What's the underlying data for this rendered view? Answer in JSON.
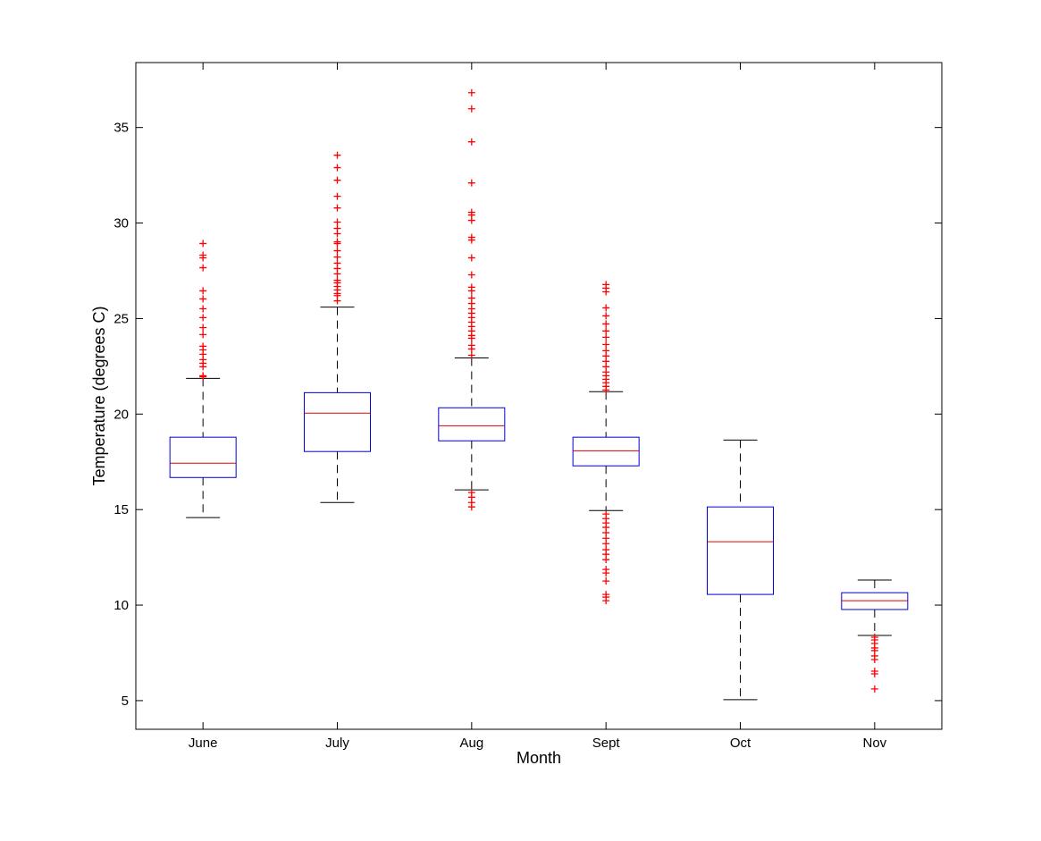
{
  "chart_data": {
    "type": "box",
    "title": "",
    "xlabel": "Month",
    "ylabel": "Temperature (degrees C)",
    "ylim": [
      3.5,
      38.4
    ],
    "xlim": [
      0.5,
      6.5
    ],
    "yticks": [
      5,
      10,
      15,
      20,
      25,
      30,
      35
    ],
    "grid": false,
    "colors": {
      "box": "#0000cc",
      "median": "#dd0000",
      "whisker": "#000000",
      "outlier": "#ff0000"
    },
    "categories": [
      "June",
      "July",
      "Aug",
      "Sept",
      "Oct",
      "Nov"
    ],
    "boxes": [
      {
        "name": "June",
        "whisker_low": 14.58,
        "q1": 16.68,
        "median": 17.43,
        "q3": 18.79,
        "whisker_high": 21.87,
        "outliers": [
          28.93,
          28.32,
          28.18,
          27.66,
          26.45,
          26.03,
          25.51,
          25.05,
          24.53,
          24.16,
          23.55,
          23.36,
          23.13,
          22.85,
          22.66,
          22.48,
          22.01,
          21.95
        ]
      },
      {
        "name": "July",
        "whisker_low": 15.37,
        "q1": 18.04,
        "median": 20.05,
        "q3": 21.12,
        "whisker_high": 25.6,
        "outliers": [
          33.55,
          32.9,
          32.24,
          31.4,
          30.79,
          30.05,
          29.72,
          29.44,
          29.02,
          28.93,
          28.55,
          28.22,
          27.9,
          27.62,
          27.34,
          27.0,
          26.87,
          26.68,
          26.5,
          26.31,
          26.2,
          25.93
        ]
      },
      {
        "name": "Aug",
        "whisker_low": 16.03,
        "q1": 18.6,
        "median": 19.39,
        "q3": 20.33,
        "whisker_high": 22.94,
        "outliers": [
          36.82,
          35.98,
          34.25,
          32.1,
          30.56,
          30.42,
          30.14,
          29.25,
          29.11,
          28.18,
          27.29,
          26.64,
          26.45,
          26.07,
          25.79,
          25.51,
          25.28,
          25.05,
          24.81,
          24.58,
          24.35,
          24.11,
          23.97,
          23.6,
          23.41,
          23.08,
          15.89,
          15.65,
          15.37,
          15.14
        ]
      },
      {
        "name": "Sept",
        "whisker_low": 14.95,
        "q1": 17.29,
        "median": 18.08,
        "q3": 18.79,
        "whisker_high": 21.17,
        "outliers": [
          26.78,
          26.59,
          26.4,
          25.56,
          25.14,
          24.72,
          24.35,
          24.02,
          23.64,
          23.32,
          23.04,
          22.76,
          22.48,
          22.2,
          22.01,
          21.82,
          21.64,
          21.45,
          21.26,
          14.77,
          14.53,
          14.3,
          14.07,
          13.79,
          13.5,
          13.22,
          12.9,
          12.66,
          12.38,
          11.87,
          11.68,
          11.26,
          10.56,
          10.42,
          10.23
        ]
      },
      {
        "name": "Oct",
        "whisker_low": 5.05,
        "q1": 10.56,
        "median": 13.32,
        "q3": 15.14,
        "whisker_high": 18.64,
        "outliers": []
      },
      {
        "name": "Nov",
        "whisker_low": 8.41,
        "q1": 9.77,
        "median": 10.23,
        "q3": 10.65,
        "whisker_high": 11.31,
        "outliers": [
          8.32,
          8.18,
          7.99,
          7.76,
          7.62,
          7.34,
          7.15,
          6.54,
          6.4,
          5.61
        ]
      }
    ]
  }
}
